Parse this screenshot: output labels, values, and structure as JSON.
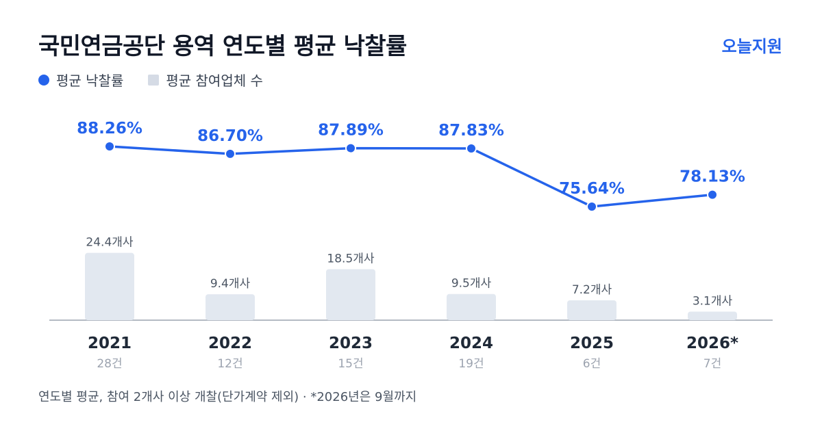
{
  "header": {
    "title": "국민연금공단 용역 연도별 평균 낙찰률",
    "brand": "오늘지원"
  },
  "legend": {
    "rate_label": "평균 낙찰률",
    "bidders_label": "평균 참여업체 수"
  },
  "colors": {
    "line": "#2563eb",
    "bar": "#e2e8f0",
    "axis": "#9ca3af",
    "year_text": "#1f2937",
    "count_text": "#9ca3af",
    "bar_label": "#4b5563"
  },
  "chart_data": {
    "type": "bar",
    "categories": [
      "2021",
      "2022",
      "2023",
      "2024",
      "2025",
      "2026*"
    ],
    "counts": [
      "28건",
      "12건",
      "15건",
      "19건",
      "6건",
      "7건"
    ],
    "series": [
      {
        "name": "평균 낙찰률",
        "type": "line",
        "values": [
          88.26,
          86.7,
          87.89,
          87.83,
          75.64,
          78.13
        ],
        "labels": [
          "88.26%",
          "86.70%",
          "87.89%",
          "87.83%",
          "75.64%",
          "78.13%"
        ]
      },
      {
        "name": "평균 참여업체 수",
        "type": "bar",
        "values": [
          24.4,
          9.4,
          18.5,
          9.5,
          7.2,
          3.1
        ],
        "labels": [
          "24.4개사",
          "9.4개사",
          "18.5개사",
          "9.5개사",
          "7.2개사",
          "3.1개사"
        ]
      }
    ]
  },
  "footnote": "연도별 평균, 참여 2개사 이상 개찰(단가계약 제외) · *2026년은 9월까지"
}
